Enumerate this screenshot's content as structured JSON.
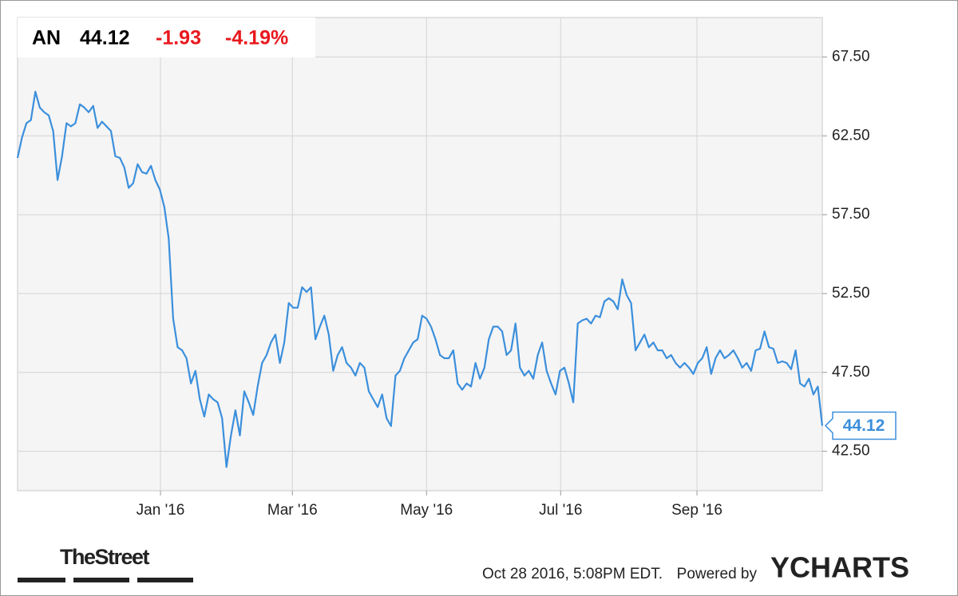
{
  "header": {
    "ticker": "AN",
    "change": "-1.93",
    "change_pct": "-4.19%"
  },
  "chart_data": {
    "type": "line",
    "series": [
      {
        "name": "AN",
        "color": "#3b8fdc",
        "values": [
          61.1,
          62.4,
          63.3,
          63.5,
          65.3,
          64.3,
          64.0,
          63.8,
          62.8,
          59.7,
          61.2,
          63.3,
          63.1,
          63.3,
          64.5,
          64.3,
          64.0,
          64.4,
          63.0,
          63.4,
          63.1,
          62.8,
          61.2,
          61.1,
          60.5,
          59.2,
          59.5,
          60.7,
          60.2,
          60.1,
          60.6,
          59.7,
          59.1,
          58.0,
          56.0,
          50.9,
          49.1,
          48.9,
          48.4,
          46.8,
          47.6,
          45.8,
          44.7,
          46.1,
          45.8,
          45.6,
          44.6,
          41.5,
          43.5,
          45.1,
          43.5,
          46.3,
          45.6,
          44.8,
          46.6,
          48.1,
          48.6,
          49.4,
          49.9,
          48.1,
          49.4,
          51.9,
          51.6,
          51.6,
          52.9,
          52.6,
          52.9,
          49.6,
          50.4,
          51.1,
          49.9,
          47.6,
          48.6,
          49.1,
          48.1,
          47.8,
          47.3,
          48.1,
          47.8,
          46.3,
          45.8,
          45.3,
          46.1,
          44.6,
          44.1,
          47.3,
          47.6,
          48.4,
          48.9,
          49.4,
          49.6,
          51.1,
          50.9,
          50.4,
          49.6,
          48.6,
          48.4,
          48.4,
          48.9,
          46.8,
          46.4,
          46.8,
          46.6,
          48.1,
          47.1,
          47.8,
          49.6,
          50.4,
          50.4,
          50.1,
          48.6,
          48.9,
          50.6,
          47.8,
          47.3,
          47.6,
          47.1,
          48.6,
          49.4,
          47.6,
          46.8,
          46.1,
          47.6,
          47.8,
          46.8,
          45.6,
          50.6,
          50.8,
          50.9,
          50.6,
          51.1,
          51.0,
          52.0,
          52.2,
          52.0,
          51.5,
          53.4,
          52.4,
          51.9,
          48.9,
          49.4,
          49.9,
          49.1,
          49.4,
          48.9,
          48.9,
          48.4,
          48.6,
          48.1,
          47.8,
          48.1,
          47.8,
          47.4,
          48.1,
          48.4,
          49.1,
          47.4,
          48.4,
          48.9,
          48.4,
          48.6,
          48.9,
          48.4,
          47.8,
          48.1,
          47.6,
          48.9,
          49.0,
          50.1,
          49.1,
          49.0,
          48.1,
          48.2,
          48.1,
          47.7,
          48.9,
          46.8,
          46.6,
          47.1,
          46.1,
          46.6,
          44.12
        ]
      }
    ],
    "xlim": [
      "2015-10-28",
      "2016-10-28"
    ],
    "xticks": [
      {
        "value": "2016-01-01",
        "label": "Jan '16"
      },
      {
        "value": "2016-03-01",
        "label": "Mar '16"
      },
      {
        "value": "2016-05-01",
        "label": "May '16"
      },
      {
        "value": "2016-07-01",
        "label": "Jul '16"
      },
      {
        "value": "2016-09-01",
        "label": "Sep '16"
      }
    ],
    "ylim": [
      40,
      70
    ],
    "yticks": [
      {
        "value": 42.5,
        "label": "42.50"
      },
      {
        "value": 47.5,
        "label": "47.50"
      },
      {
        "value": 52.5,
        "label": "52.50"
      },
      {
        "value": 57.5,
        "label": "57.50"
      },
      {
        "value": 62.5,
        "label": "62.50"
      },
      {
        "value": 67.5,
        "label": "67.50"
      }
    ],
    "grid": true
  },
  "footer": {
    "brand": "TheStreet",
    "timestamp": "Oct 28 2016, 5:08PM EDT.",
    "powered": "Powered by",
    "provider": "YCHARTS"
  }
}
